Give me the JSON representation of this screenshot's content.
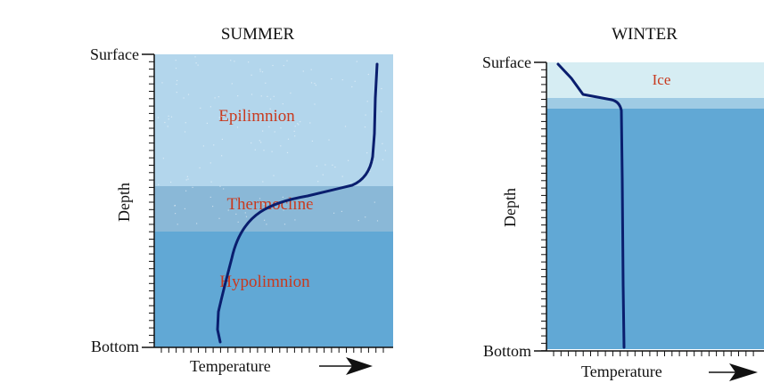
{
  "summer": {
    "title": "SUMMER",
    "top_label": "Surface",
    "bottom_label": "Bottom",
    "y_axis_label": "Depth",
    "x_axis_label": "Temperature",
    "layers": {
      "epilimnion": "Epilimnion",
      "thermocline": "Thermocline",
      "hypolimnion": "Hypolimnion"
    }
  },
  "winter": {
    "title": "WINTER",
    "top_label": "Surface",
    "bottom_label": "Bottom",
    "y_axis_label": "Depth",
    "x_axis_label": "Temperature",
    "ice_label": "Ice"
  },
  "colors": {
    "epilimnion": "#b3d6ec",
    "thermocline": "#8ab8d7",
    "hypolimnion": "#61a8d5",
    "ice": "#d6edf3",
    "ice_transition": "#9fcbe4",
    "curve": "#0a1e6e",
    "label_red": "#c8391e"
  }
}
